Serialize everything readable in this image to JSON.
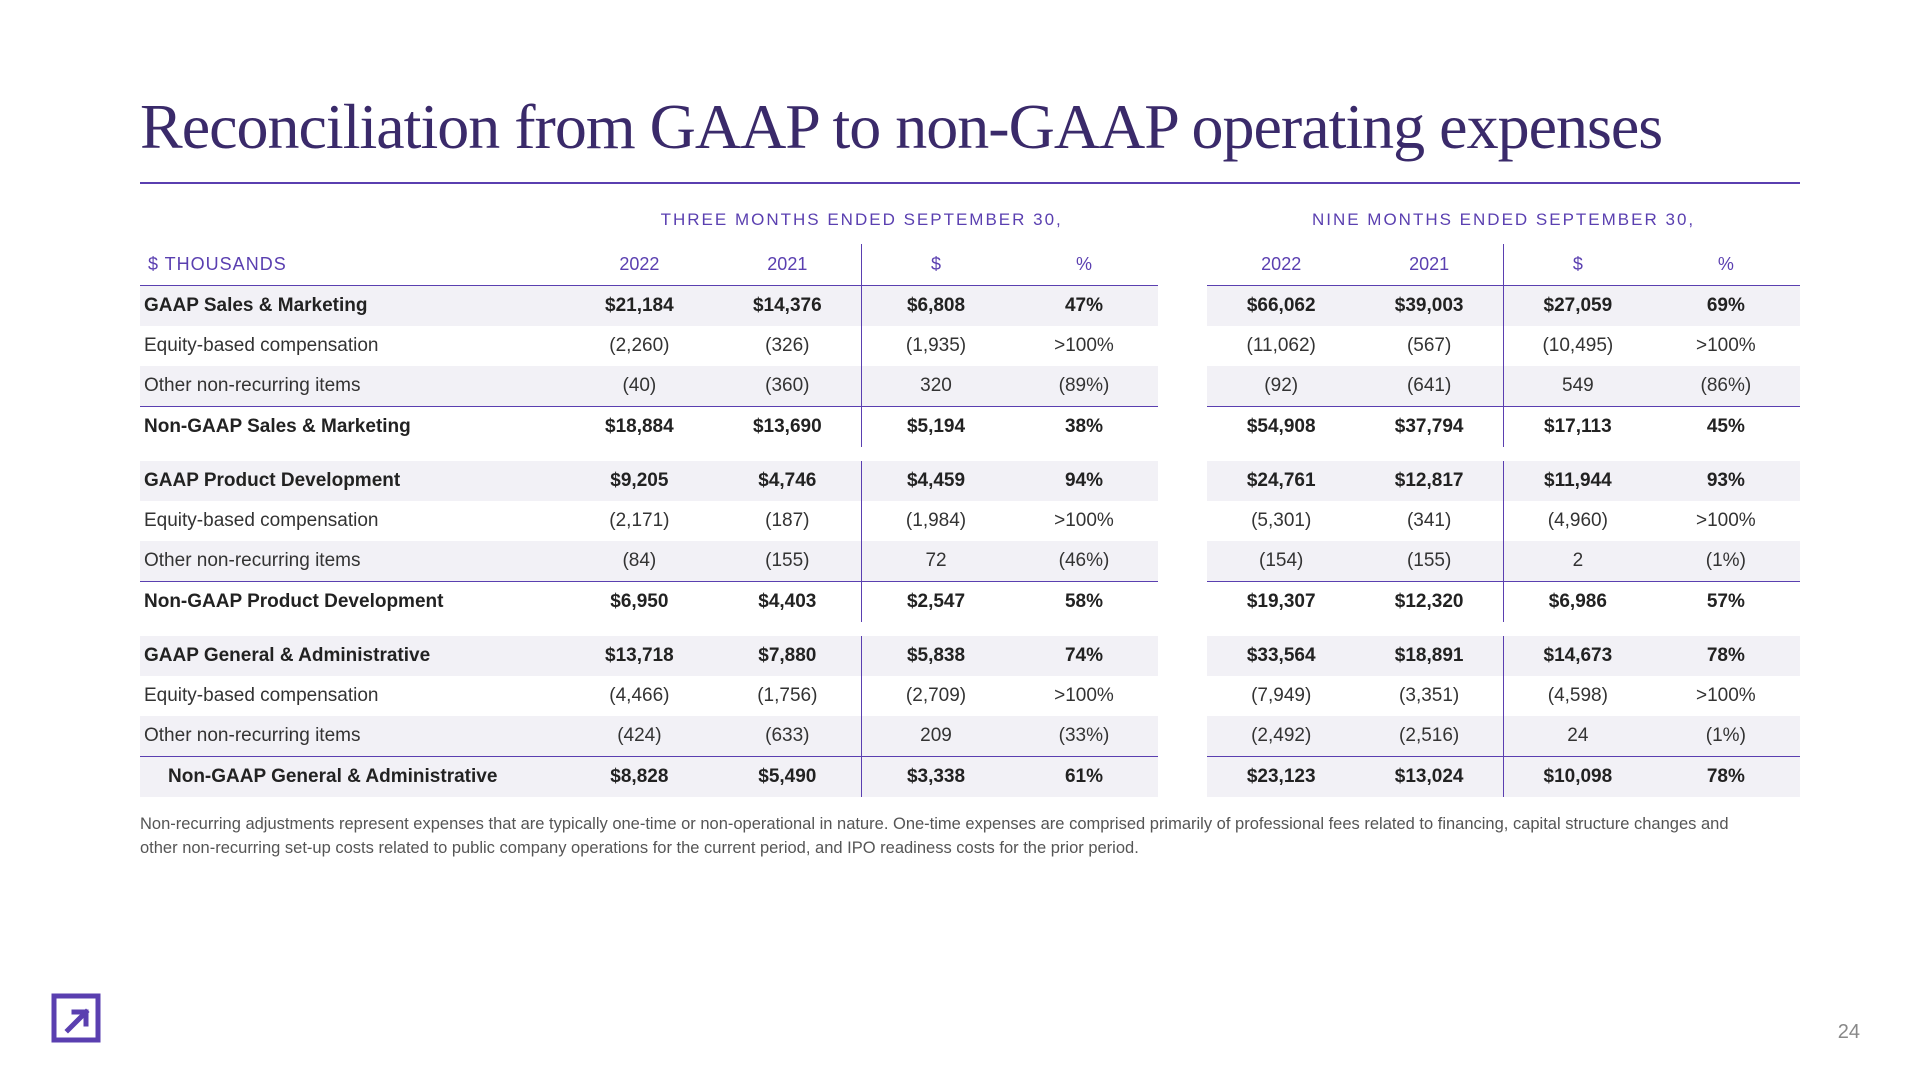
{
  "title": "Reconciliation from GAAP to non-GAAP operating expenses",
  "periods": {
    "three": "THREE MONTHS ENDED SEPTEMBER 30,",
    "nine": "NINE MONTHS ENDED SEPTEMBER 30,"
  },
  "columns": {
    "unit": "$ THOUSANDS",
    "y2022": "2022",
    "y2021": "2021",
    "delta": "$",
    "pct": "%"
  },
  "rows": [
    {
      "k": "sm_gaap",
      "bold": true,
      "shade": true,
      "tline": false,
      "label": "GAAP Sales & Marketing",
      "t": {
        "y22": "$21,184",
        "y21": "$14,376",
        "d": "$6,808",
        "p": "47%"
      },
      "n": {
        "y22": "$66,062",
        "y21": "$39,003",
        "d": "$27,059",
        "p": "69%"
      }
    },
    {
      "k": "sm_eq",
      "bold": false,
      "shade": false,
      "tline": false,
      "label": "Equity-based compensation",
      "t": {
        "y22": "(2,260)",
        "y21": "(326)",
        "d": "(1,935)",
        "p": ">100%"
      },
      "n": {
        "y22": "(11,062)",
        "y21": "(567)",
        "d": "(10,495)",
        "p": ">100%"
      }
    },
    {
      "k": "sm_nr",
      "bold": false,
      "shade": true,
      "tline": false,
      "label": "Other non-recurring items",
      "t": {
        "y22": "(40)",
        "y21": "(360)",
        "d": "320",
        "p": "(89%)"
      },
      "n": {
        "y22": "(92)",
        "y21": "(641)",
        "d": "549",
        "p": "(86%)"
      }
    },
    {
      "k": "sm_non",
      "bold": true,
      "shade": false,
      "tline": true,
      "label": "Non-GAAP Sales & Marketing",
      "t": {
        "y22": "$18,884",
        "y21": "$13,690",
        "d": "$5,194",
        "p": "38%"
      },
      "n": {
        "y22": "$54,908",
        "y21": "$37,794",
        "d": "$17,113",
        "p": "45%"
      }
    },
    {
      "spacer": true
    },
    {
      "k": "pd_gaap",
      "bold": true,
      "shade": true,
      "tline": false,
      "label": "GAAP Product Development",
      "t": {
        "y22": "$9,205",
        "y21": "$4,746",
        "d": "$4,459",
        "p": "94%"
      },
      "n": {
        "y22": "$24,761",
        "y21": "$12,817",
        "d": "$11,944",
        "p": "93%"
      }
    },
    {
      "k": "pd_eq",
      "bold": false,
      "shade": false,
      "tline": false,
      "label": "Equity-based compensation",
      "t": {
        "y22": "(2,171)",
        "y21": "(187)",
        "d": "(1,984)",
        "p": ">100%"
      },
      "n": {
        "y22": "(5,301)",
        "y21": "(341)",
        "d": "(4,960)",
        "p": ">100%"
      }
    },
    {
      "k": "pd_nr",
      "bold": false,
      "shade": true,
      "tline": false,
      "label": "Other non-recurring items",
      "t": {
        "y22": "(84)",
        "y21": "(155)",
        "d": "72",
        "p": "(46%)"
      },
      "n": {
        "y22": "(154)",
        "y21": "(155)",
        "d": "2",
        "p": "(1%)"
      }
    },
    {
      "k": "pd_non",
      "bold": true,
      "shade": false,
      "tline": true,
      "label": "Non-GAAP Product Development",
      "t": {
        "y22": "$6,950",
        "y21": "$4,403",
        "d": "$2,547",
        "p": "58%"
      },
      "n": {
        "y22": "$19,307",
        "y21": "$12,320",
        "d": "$6,986",
        "p": "57%"
      }
    },
    {
      "spacer": true
    },
    {
      "k": "ga_gaap",
      "bold": true,
      "shade": true,
      "tline": false,
      "label": "GAAP General & Administrative",
      "t": {
        "y22": "$13,718",
        "y21": "$7,880",
        "d": "$5,838",
        "p": "74%"
      },
      "n": {
        "y22": "$33,564",
        "y21": "$18,891",
        "d": "$14,673",
        "p": "78%"
      }
    },
    {
      "k": "ga_eq",
      "bold": false,
      "shade": false,
      "tline": false,
      "label": "Equity-based compensation",
      "t": {
        "y22": "(4,466)",
        "y21": "(1,756)",
        "d": "(2,709)",
        "p": ">100%"
      },
      "n": {
        "y22": "(7,949)",
        "y21": "(3,351)",
        "d": "(4,598)",
        "p": ">100%"
      }
    },
    {
      "k": "ga_nr",
      "bold": false,
      "shade": true,
      "tline": false,
      "label": "Other non-recurring items",
      "t": {
        "y22": "(424)",
        "y21": "(633)",
        "d": "209",
        "p": "(33%)"
      },
      "n": {
        "y22": "(2,492)",
        "y21": "(2,516)",
        "d": "24",
        "p": "(1%)"
      }
    },
    {
      "k": "ga_non",
      "bold": true,
      "shade": true,
      "tline": true,
      "label": "Non-GAAP General & Administrative",
      "indent": true,
      "t": {
        "y22": "$8,828",
        "y21": "$5,490",
        "d": "$3,338",
        "p": "61%"
      },
      "n": {
        "y22": "$23,123",
        "y21": "$13,024",
        "d": "$10,098",
        "p": "78%"
      }
    }
  ],
  "footnote": "Non-recurring adjustments represent expenses that are typically one-time or non-operational in nature. One-time expenses are comprised primarily of professional fees related to financing, capital structure changes and other non-recurring set-up costs related to public company operations for the current period, and IPO readiness costs for the prior period.",
  "page": "24",
  "colors": {
    "accent": "#5a3fb0",
    "title": "#3a2a6a",
    "shade": "#f2f1f6"
  }
}
